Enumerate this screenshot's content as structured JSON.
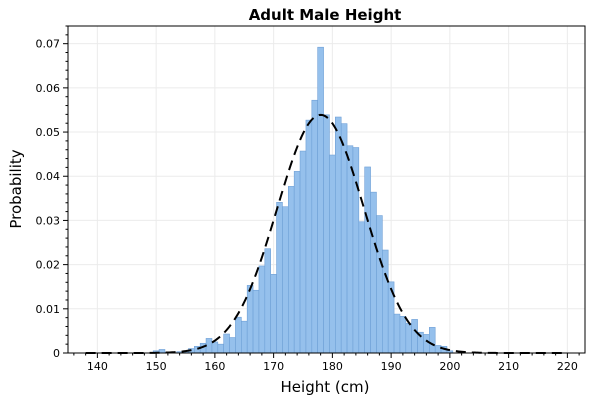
{
  "chart_data": {
    "type": "bar",
    "title": "Adult Male Height",
    "xlabel": "Height (cm)",
    "ylabel": "Probability",
    "xlim": [
      135,
      223
    ],
    "ylim": [
      0,
      0.074
    ],
    "x_ticks": [
      140,
      150,
      160,
      170,
      180,
      190,
      200,
      210,
      220
    ],
    "y_ticks": [
      0,
      0.01,
      0.02,
      0.03,
      0.04,
      0.05,
      0.06,
      0.07
    ],
    "y_tick_labels": [
      "0",
      "0.01",
      "0.02",
      "0.03",
      "0.04",
      "0.05",
      "0.06",
      "0.07"
    ],
    "grid": true,
    "bin_width": 1,
    "bins": {
      "x": [
        150,
        151,
        152,
        153,
        154,
        155,
        156,
        157,
        158,
        159,
        160,
        161,
        162,
        163,
        164,
        165,
        166,
        167,
        168,
        169,
        170,
        171,
        172,
        173,
        174,
        175,
        176,
        177,
        178,
        179,
        180,
        181,
        182,
        183,
        184,
        185,
        186,
        187,
        188,
        189,
        190,
        191,
        192,
        193,
        194,
        195,
        196,
        197,
        198,
        199,
        200
      ],
      "values": [
        0.0005,
        0.0008,
        0.0002,
        0,
        0.0003,
        0.0005,
        0.001,
        0.0015,
        0.0022,
        0.0033,
        0.0025,
        0.002,
        0.0043,
        0.0035,
        0.0081,
        0.0072,
        0.0153,
        0.0142,
        0.0197,
        0.0236,
        0.0178,
        0.0341,
        0.0331,
        0.0377,
        0.0411,
        0.0457,
        0.0527,
        0.0572,
        0.0692,
        0.0539,
        0.0448,
        0.0534,
        0.0519,
        0.0469,
        0.0465,
        0.0297,
        0.0421,
        0.0364,
        0.0311,
        0.0233,
        0.0161,
        0.0088,
        0.0083,
        0.0067,
        0.0076,
        0.0047,
        0.0042,
        0.0058,
        0.0017,
        0.0015,
        0.0005
      ]
    },
    "fit_curve": {
      "style": "dashed",
      "mean": 178,
      "std": 7.4,
      "peak": 0.0539,
      "x_range": [
        138,
        220
      ]
    }
  }
}
